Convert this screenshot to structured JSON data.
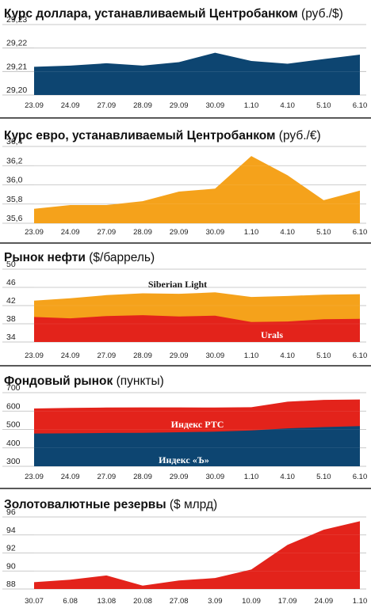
{
  "colors": {
    "navy": "#0d4571",
    "orange": "#f5a21b",
    "red": "#e3231b",
    "grid": "#b9b9b9",
    "divider": "#222222"
  },
  "chart_data": [
    {
      "type": "area",
      "title": "Курс доллара, устанавливаемый Центробанком",
      "unit": "(руб./$)",
      "categories": [
        "23.09",
        "24.09",
        "27.09",
        "28.09",
        "29.09",
        "30.09",
        "1.10",
        "4.10",
        "5.10",
        "6.10"
      ],
      "y_ticks": [
        "29,23",
        "29,22",
        "29,21",
        "29,20"
      ],
      "ylim": [
        29.2,
        29.23
      ],
      "series": [
        {
          "values": [
            29.212,
            29.2125,
            29.2135,
            29.2125,
            29.214,
            29.218,
            29.2145,
            29.2133,
            29.2153,
            29.2172
          ],
          "color": "navy"
        }
      ],
      "grid": true
    },
    {
      "type": "area",
      "title": "Курс евро, устанавливаемый Центробанком",
      "unit": "(руб./€)",
      "categories": [
        "23.09",
        "24.09",
        "27.09",
        "28.09",
        "29.09",
        "30.09",
        "1.10",
        "4.10",
        "5.10",
        "6.10"
      ],
      "y_ticks": [
        "36,4",
        "36,2",
        "36,0",
        "35,8",
        "35,6"
      ],
      "ylim": [
        35.6,
        36.4
      ],
      "series": [
        {
          "values": [
            35.75,
            35.79,
            35.79,
            35.83,
            35.93,
            35.96,
            36.3,
            36.1,
            35.84,
            35.94
          ],
          "color": "orange"
        }
      ],
      "grid": true
    },
    {
      "type": "area",
      "title": "Рынок нефти",
      "unit": "($/баррель)",
      "categories": [
        "23.09",
        "24.09",
        "27.09",
        "28.09",
        "29.09",
        "30.09",
        "1.10",
        "4.10",
        "5.10",
        "6.10"
      ],
      "y_ticks": [
        "50",
        "46",
        "42",
        "38",
        "34"
      ],
      "ylim": [
        34,
        50
      ],
      "series": [
        {
          "name": "Siberian Light",
          "values": [
            43.1,
            43.6,
            44.3,
            44.7,
            44.6,
            44.9,
            43.9,
            44.1,
            44.4,
            44.5
          ],
          "color": "orange"
        },
        {
          "name": "Urals",
          "values": [
            39.5,
            39.2,
            39.7,
            39.9,
            39.6,
            39.8,
            38.4,
            38.5,
            39.0,
            39.1
          ],
          "color": "red"
        }
      ],
      "grid": true
    },
    {
      "type": "area",
      "title": "Фондовый рынок",
      "unit": "(пункты)",
      "categories": [
        "23.09",
        "24.09",
        "27.09",
        "28.09",
        "29.09",
        "30.09",
        "1.10",
        "4.10",
        "5.10",
        "6.10"
      ],
      "y_ticks": [
        "700",
        "600",
        "500",
        "400",
        "300"
      ],
      "ylim": [
        300,
        700
      ],
      "series": [
        {
          "name": "Индекс РТС",
          "values": [
            614,
            617,
            619,
            620,
            620,
            619,
            621,
            651,
            661,
            663
          ],
          "color": "red"
        },
        {
          "name": "Индекс «Ъ»",
          "values": [
            478,
            479,
            481,
            482,
            485,
            488,
            495,
            506,
            513,
            518
          ],
          "color": "navy"
        }
      ],
      "grid": true
    },
    {
      "type": "area",
      "title": "Золотовалютные резервы",
      "unit": "($ млрд)",
      "categories": [
        "30.07",
        "6.08",
        "13.08",
        "20.08",
        "27.08",
        "3.09",
        "10.09",
        "17.09",
        "24.09",
        "1.10"
      ],
      "y_ticks": [
        "96",
        "94",
        "92",
        "90",
        "88"
      ],
      "ylim": [
        87.5,
        96
      ],
      "series": [
        {
          "values": [
            88.3,
            88.6,
            89.1,
            87.9,
            88.5,
            88.8,
            89.8,
            92.7,
            94.5,
            95.5
          ],
          "color": "red"
        }
      ],
      "grid": true
    }
  ]
}
